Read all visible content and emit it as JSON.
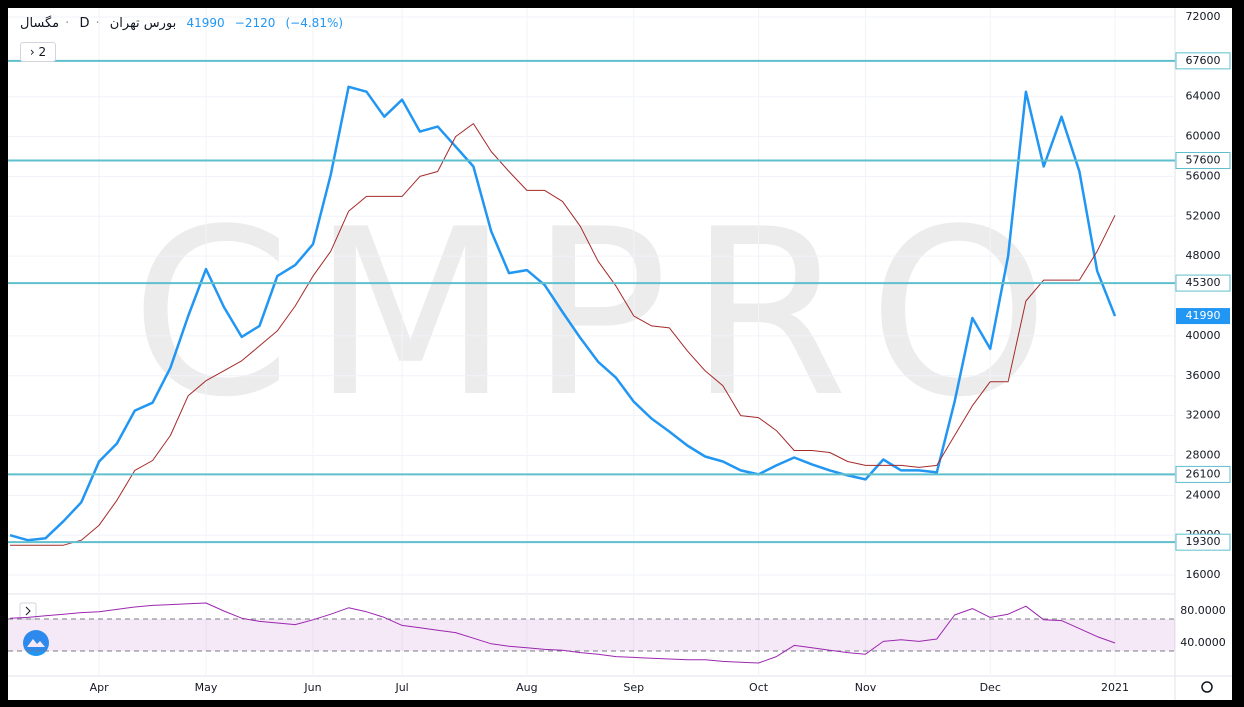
{
  "header": {
    "symbol": "مگسال",
    "interval": "D",
    "exchange": "بورس تهران",
    "last": 41990,
    "change": "−2120",
    "change_pct": "(−4.81%)",
    "indicators_count": 2
  },
  "watermark": "CMPRO",
  "chart_data": [
    {
      "type": "line",
      "categories": [
        null,
        null,
        null,
        null,
        null,
        "Apr",
        null,
        null,
        null,
        null,
        null,
        "May",
        null,
        null,
        null,
        null,
        null,
        "Jun",
        null,
        null,
        null,
        null,
        "Jul",
        null,
        null,
        null,
        null,
        null,
        null,
        "Aug",
        null,
        null,
        null,
        null,
        null,
        "Sep",
        null,
        null,
        null,
        null,
        null,
        null,
        "Oct",
        null,
        null,
        null,
        null,
        null,
        "Nov",
        null,
        null,
        null,
        null,
        null,
        null,
        "Dec",
        null,
        null,
        null,
        null,
        null,
        null,
        "2021"
      ],
      "series": [
        {
          "color": "#2196f3",
          "values": [
            20000,
            19500,
            19700,
            21400,
            23300,
            27400,
            29200,
            32500,
            33300,
            36800,
            42000,
            46700,
            42900,
            39900,
            41000,
            46000,
            47100,
            49200,
            56200,
            65000,
            64500,
            62000,
            63700,
            60500,
            61000,
            59000,
            57000,
            50500,
            46300,
            46600,
            45100,
            42400,
            39800,
            37400,
            35800,
            33400,
            31700,
            30400,
            29000,
            27900,
            27400,
            26500,
            26100,
            27000,
            27800,
            27100,
            26500,
            26000,
            25600,
            27600,
            26500,
            26500,
            26300,
            33400,
            41800,
            38700,
            48000,
            64500,
            57000,
            62000,
            56500,
            46500,
            41990
          ]
        },
        {
          "color": "#a52a2a",
          "values": [
            19000,
            19000,
            19000,
            19000,
            19500,
            21000,
            23500,
            26500,
            27500,
            30000,
            34000,
            35500,
            36500,
            37500,
            39000,
            40500,
            43000,
            46000,
            48500,
            52500,
            54000,
            54000,
            54000,
            56000,
            56500,
            60000,
            61300,
            58500,
            56500,
            54600,
            54600,
            53500,
            51000,
            47500,
            45000,
            42000,
            41000,
            40800,
            38500,
            36500,
            35000,
            32000,
            31800,
            30500,
            28500,
            28500,
            28300,
            27400,
            27000,
            27000,
            27000,
            26800,
            27000,
            30000,
            33000,
            35400,
            35400,
            43500,
            45600,
            45600,
            45600,
            48500,
            52100
          ]
        }
      ],
      "ylim": [
        14200,
        72000
      ],
      "yticks": [
        16000,
        20000,
        24000,
        28000,
        32000,
        36000,
        40000,
        48000,
        52000,
        56000,
        60000,
        64000,
        72000
      ],
      "levels": [
        67600,
        57600,
        45300,
        26100,
        19300
      ],
      "level_color": "#5fbfcc",
      "last_price": 41990,
      "grid": true
    },
    {
      "type": "line",
      "series": [
        {
          "color": "#9c27b0",
          "values": [
            71,
            72,
            74,
            76,
            78,
            79,
            82,
            85,
            87,
            88,
            89,
            90,
            80,
            71,
            67,
            65,
            63,
            69,
            76,
            84,
            79,
            72,
            62,
            59,
            56,
            53,
            46,
            39,
            36,
            34,
            32,
            31,
            28,
            26,
            23,
            22,
            21,
            20,
            19,
            19,
            17,
            16,
            15,
            23,
            37,
            34,
            31,
            28,
            26,
            42,
            44,
            42,
            45,
            75,
            83,
            72,
            76,
            86,
            69,
            68,
            58,
            48,
            40
          ]
        }
      ],
      "ylim": [
        0,
        97.5
      ],
      "yticks": [
        {
          "value": 80,
          "label": "80.0000"
        },
        {
          "value": 40,
          "label": "40.0000"
        }
      ],
      "bands": [
        30,
        70
      ],
      "band_color": "#9c27b0"
    }
  ]
}
